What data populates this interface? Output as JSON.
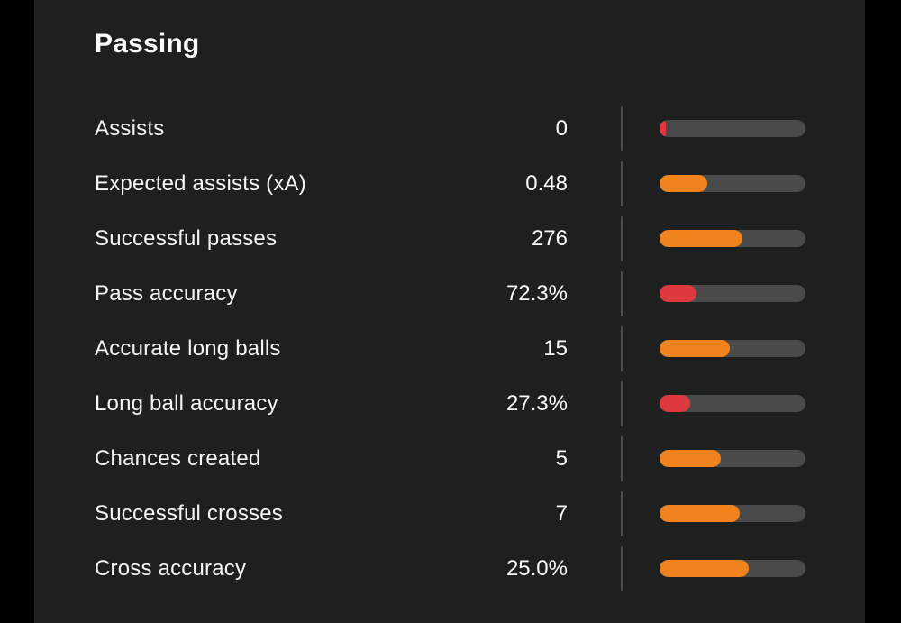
{
  "section": {
    "title": "Passing"
  },
  "colors": {
    "panel_background": "#1e1f1f",
    "page_background": "#000000",
    "bar_track": "#4a4a4a",
    "divider": "#4f4f4f",
    "text": "#fafafa",
    "orange": "#f0831e",
    "red": "#de393f"
  },
  "chart_data": {
    "type": "bar",
    "title": "Passing",
    "categories": [
      "Assists",
      "Expected assists (xA)",
      "Successful passes",
      "Pass accuracy",
      "Accurate long balls",
      "Long ball accuracy",
      "Chances created",
      "Successful crosses",
      "Cross accuracy"
    ],
    "values": [
      "0",
      "0.48",
      "276",
      "72.3%",
      "15",
      "27.3%",
      "5",
      "7",
      "25.0%"
    ],
    "bar_fill_percent": [
      4,
      33,
      57,
      25,
      48,
      21,
      42,
      55,
      61
    ],
    "bar_colors": [
      "red",
      "orange",
      "orange",
      "red",
      "orange",
      "red",
      "orange",
      "orange",
      "orange"
    ],
    "legend_position": "none",
    "grid": false
  },
  "stats": [
    {
      "label": "Assists",
      "value": "0",
      "fill_pct": 4,
      "color_key": "red"
    },
    {
      "label": "Expected assists (xA)",
      "value": "0.48",
      "fill_pct": 33,
      "color_key": "orange"
    },
    {
      "label": "Successful passes",
      "value": "276",
      "fill_pct": 57,
      "color_key": "orange"
    },
    {
      "label": "Pass accuracy",
      "value": "72.3%",
      "fill_pct": 25,
      "color_key": "red"
    },
    {
      "label": "Accurate long balls",
      "value": "15",
      "fill_pct": 48,
      "color_key": "orange"
    },
    {
      "label": "Long ball accuracy",
      "value": "27.3%",
      "fill_pct": 21,
      "color_key": "red"
    },
    {
      "label": "Chances created",
      "value": "5",
      "fill_pct": 42,
      "color_key": "orange"
    },
    {
      "label": "Successful crosses",
      "value": "7",
      "fill_pct": 55,
      "color_key": "orange"
    },
    {
      "label": "Cross accuracy",
      "value": "25.0%",
      "fill_pct": 61,
      "color_key": "orange"
    }
  ]
}
